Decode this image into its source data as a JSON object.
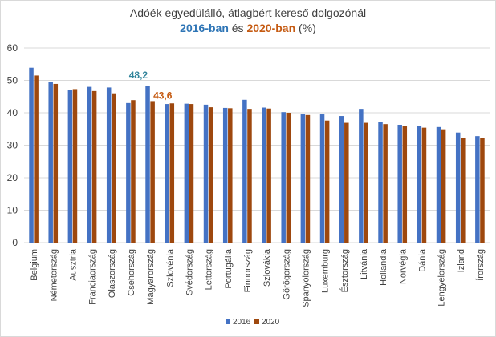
{
  "chart_data": {
    "type": "bar",
    "title_line1": "Adóék egyedülálló, átlagbért kereső dolgozónál",
    "title_line2_part1": "2016-ban",
    "title_line2_part2": " és ",
    "title_line2_part3": "2020-ban",
    "title_line2_part4": " (%)",
    "categories": [
      "Belgium",
      "Németország",
      "Ausztria",
      "Franciaország",
      "Olaszország",
      "Csehország",
      "Magyarország",
      "Szlovénia",
      "Svédország",
      "Lettország",
      "Portugália",
      "Finnország",
      "Szlovákia",
      "Görögország",
      "Spanyolország",
      "Luxemburg",
      "Észtország",
      "Litvánia",
      "Hollandia",
      "Norvégia",
      "Dánia",
      "Lengyelország",
      "Izland",
      "Írország"
    ],
    "series": [
      {
        "name": "2016",
        "color": "#4472c4",
        "values": [
          53.9,
          49.4,
          47.1,
          48.0,
          47.8,
          43.0,
          48.2,
          42.7,
          42.8,
          42.5,
          41.5,
          44.0,
          41.6,
          40.2,
          39.5,
          39.5,
          39.0,
          41.2,
          37.2,
          36.3,
          36.0,
          35.6,
          33.9,
          32.8
        ]
      },
      {
        "name": "2020",
        "color": "#9e480e",
        "values": [
          51.5,
          48.9,
          47.3,
          46.7,
          46.0,
          43.9,
          43.6,
          42.9,
          42.7,
          41.7,
          41.4,
          41.2,
          41.3,
          40.0,
          39.3,
          37.6,
          36.9,
          36.9,
          36.5,
          35.8,
          35.4,
          34.9,
          32.2,
          32.3
        ]
      }
    ],
    "ylim": [
      0,
      60
    ],
    "yticks": [
      "0",
      "10",
      "20",
      "30",
      "40",
      "50",
      "60"
    ],
    "grid": true,
    "legend": "bottom",
    "annotations": [
      {
        "text": "48,2",
        "category": "Magyarország",
        "series": "2016",
        "color": "#31849b"
      },
      {
        "text": "43,6",
        "category": "Magyarország",
        "series": "2020",
        "color": "#c55a11"
      }
    ]
  }
}
